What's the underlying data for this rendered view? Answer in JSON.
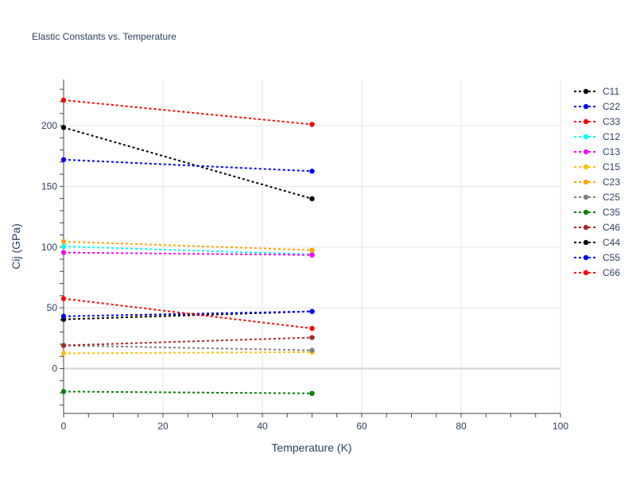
{
  "chart_data": {
    "type": "line",
    "title": "Elastic Constants vs. Temperature",
    "xlabel": "Temperature (K)",
    "ylabel": "Cij (GPa)",
    "xlim": [
      0,
      100
    ],
    "ylim": [
      -37,
      238
    ],
    "xticks": [
      0,
      20,
      40,
      60,
      80,
      100
    ],
    "yticks": [
      0,
      50,
      100,
      150,
      200
    ],
    "grid": true,
    "legend_position": "right",
    "x": [
      0,
      50
    ],
    "series": [
      {
        "name": "C11",
        "color": "#000000",
        "values": [
          198.5,
          139.8
        ]
      },
      {
        "name": "C22",
        "color": "#0000ff",
        "values": [
          172.0,
          162.5
        ]
      },
      {
        "name": "C33",
        "color": "#ff0000",
        "values": [
          221.0,
          201.0
        ]
      },
      {
        "name": "C12",
        "color": "#00ffff",
        "values": [
          100.5,
          94.0
        ]
      },
      {
        "name": "C13",
        "color": "#ff00ff",
        "values": [
          95.5,
          93.5
        ]
      },
      {
        "name": "C15",
        "color": "#ffc000",
        "values": [
          12.5,
          13.5
        ]
      },
      {
        "name": "C23",
        "color": "#ffa500",
        "values": [
          104.5,
          97.5
        ]
      },
      {
        "name": "C25",
        "color": "#808080",
        "values": [
          19.0,
          15.0
        ]
      },
      {
        "name": "C35",
        "color": "#008000",
        "values": [
          -19.0,
          -20.5
        ]
      },
      {
        "name": "C46",
        "color": "#a52a2a",
        "values": [
          19.0,
          25.5
        ]
      },
      {
        "name": "C44",
        "color": "#000000",
        "values": [
          40.5,
          47.0
        ]
      },
      {
        "name": "C55",
        "color": "#0000ff",
        "values": [
          43.0,
          47.0
        ]
      },
      {
        "name": "C66",
        "color": "#ff0000",
        "values": [
          57.5,
          33.0
        ]
      }
    ]
  }
}
